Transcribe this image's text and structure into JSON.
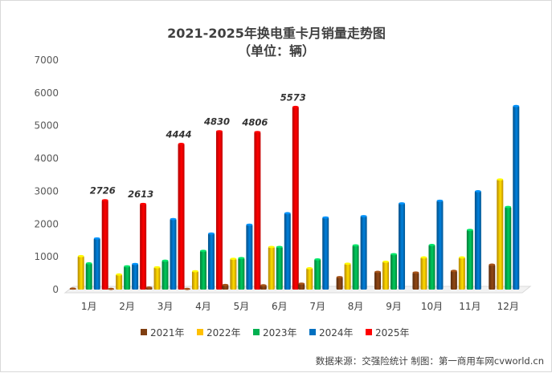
{
  "chart_data": {
    "type": "bar",
    "title": "2021-2025年换电重卡月销量走势图",
    "subtitle": "（单位：辆）",
    "categories": [
      "1月",
      "2月",
      "3月",
      "4月",
      "5月",
      "6月",
      "7月",
      "8月",
      "9月",
      "10月",
      "11月",
      "12月"
    ],
    "series": [
      {
        "name": "2021年",
        "color": "#7F3F12",
        "values": [
          30,
          20,
          60,
          20,
          140,
          130,
          180,
          380,
          540,
          520,
          570,
          760
        ]
      },
      {
        "name": "2022年",
        "color": "#FFC000",
        "values": [
          1020,
          460,
          680,
          560,
          940,
          1300,
          650,
          790,
          850,
          980,
          980,
          3360
        ]
      },
      {
        "name": "2023年",
        "color": "#00B050",
        "values": [
          800,
          710,
          880,
          1180,
          960,
          1300,
          920,
          1350,
          1080,
          1360,
          1820,
          2520
        ]
      },
      {
        "name": "2024年",
        "color": "#0070C0",
        "values": [
          1560,
          780,
          2150,
          1710,
          1980,
          2330,
          2200,
          2240,
          2630,
          2710,
          3000,
          5600
        ]
      },
      {
        "name": "2025年",
        "color": "#FF0000",
        "values": [
          2726,
          2613,
          4444,
          4830,
          4806,
          5573,
          null,
          null,
          null,
          null,
          null,
          null
        ]
      }
    ],
    "data_labels": {
      "series": "2025年",
      "values": [
        "2726",
        "2613",
        "4444",
        "4830",
        "4806",
        "5573"
      ]
    },
    "yticks": [
      "0",
      "1000",
      "2000",
      "3000",
      "4000",
      "5000",
      "6000",
      "7000"
    ],
    "ylim": [
      0,
      7000
    ],
    "xlabel": "",
    "ylabel": "",
    "legend_position": "bottom",
    "grid": false
  },
  "source_note": "数据来源：交强险统计 制图：第一商用车网cvworld.cn"
}
